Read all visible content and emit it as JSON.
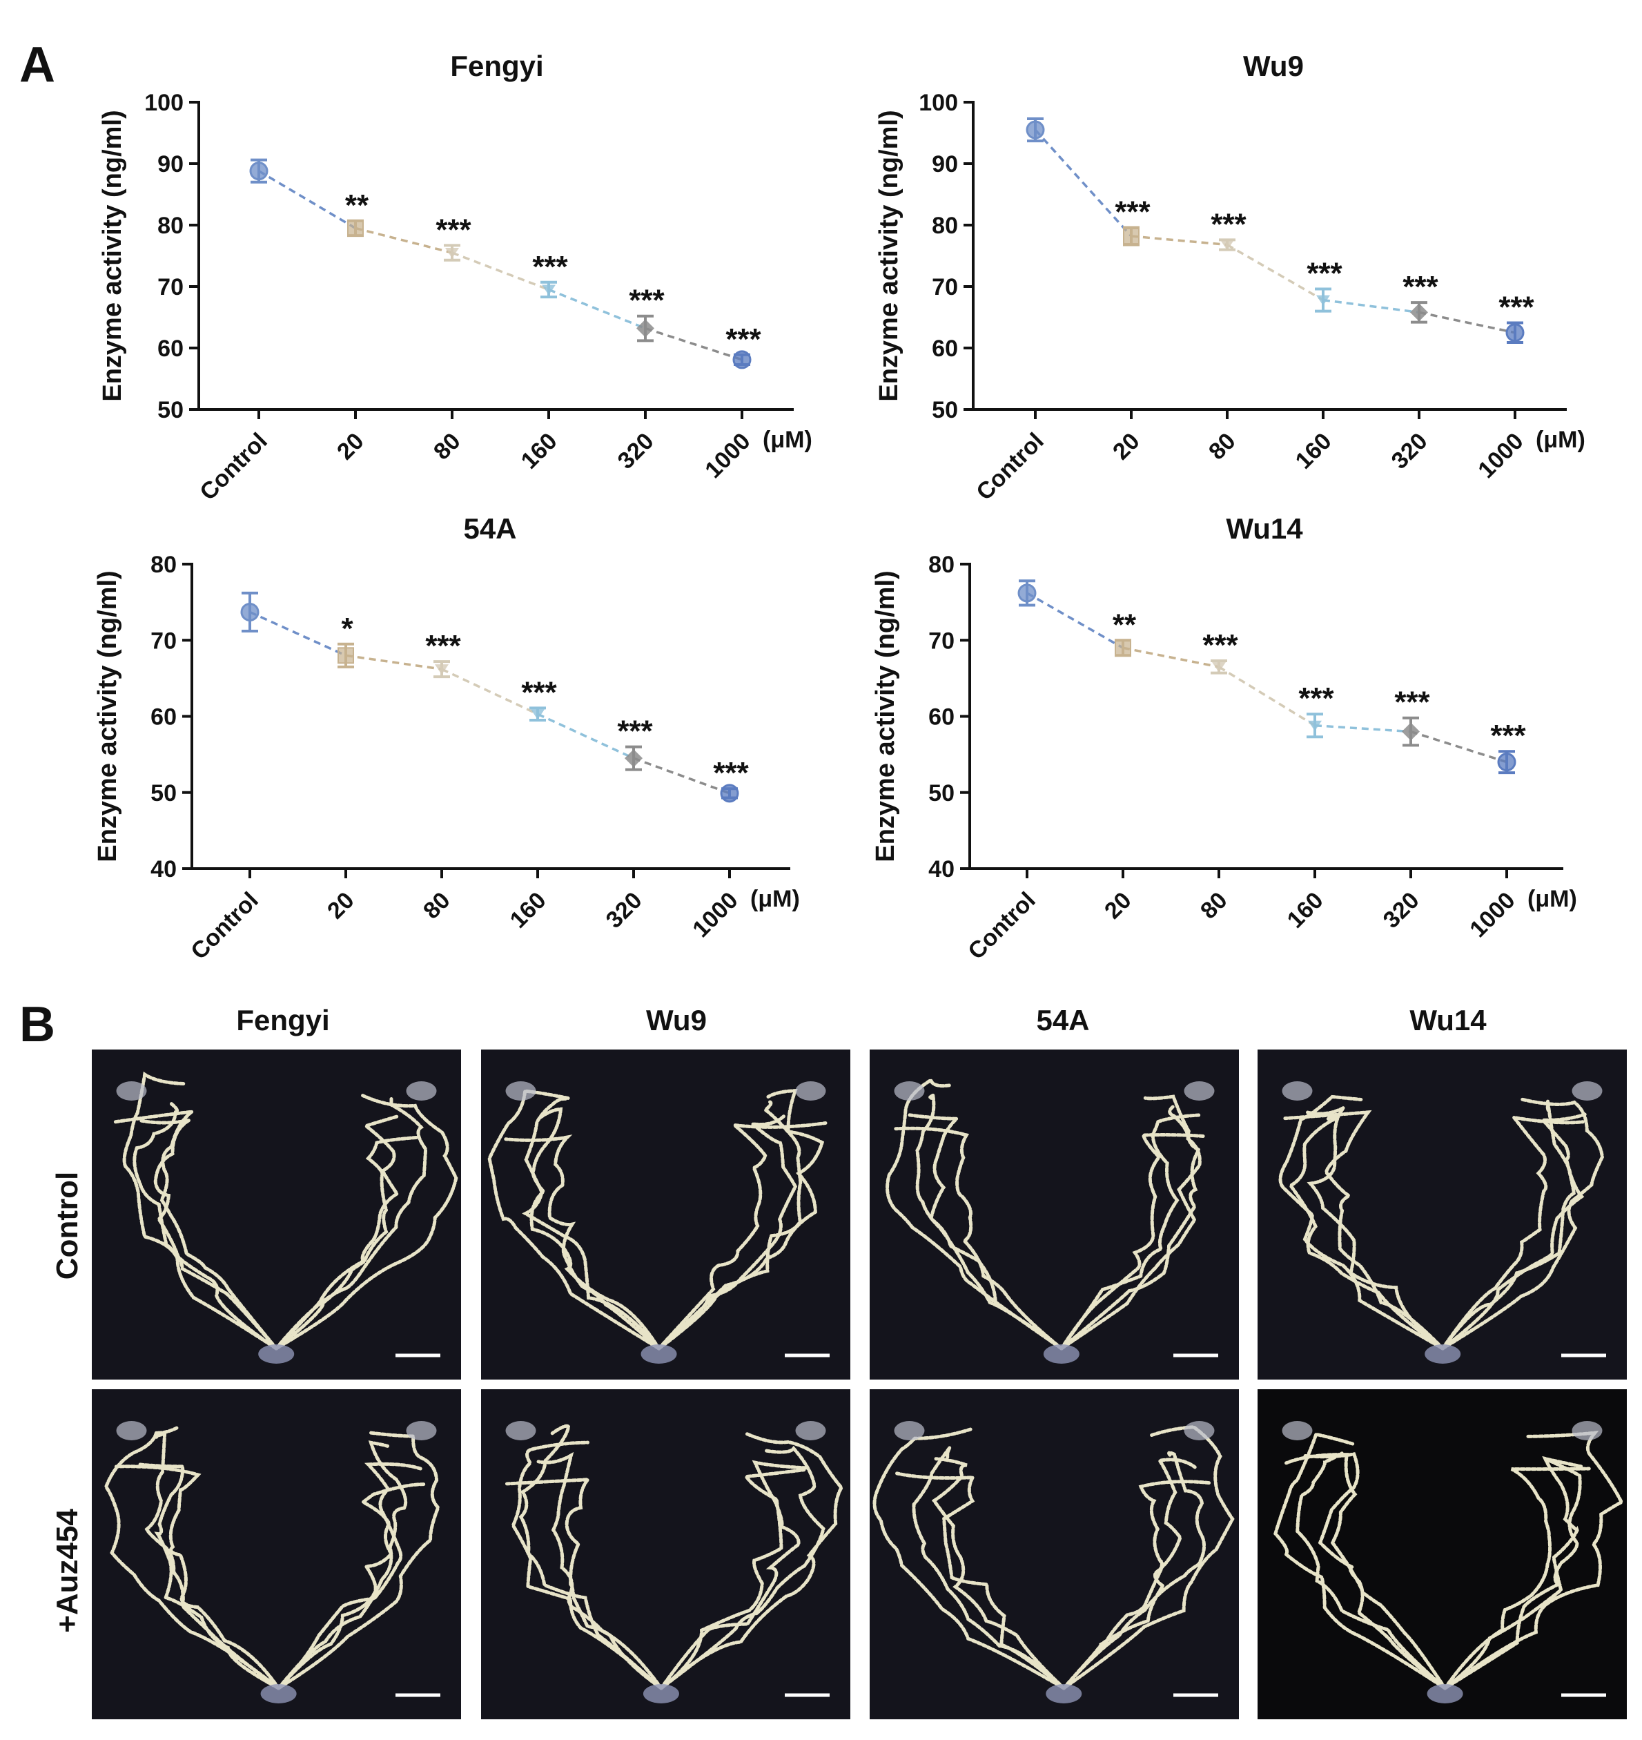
{
  "panel_a_label": "A",
  "panel_b_label": "B",
  "colors": {
    "blue": "#6f8fc8",
    "tan": "#c7b28f",
    "beige": "#d4cbb7",
    "lightblue": "#8fc1db",
    "grey": "#8c8c8c",
    "darkblue": "#5b7cc0"
  },
  "chart_data": [
    {
      "type": "line",
      "title": "Fengyi",
      "ylabel": "Enzyme activity (ng/ml)",
      "xlabel": "(μM)",
      "categories": [
        "Control",
        "20",
        "80",
        "160",
        "320",
        "1000"
      ],
      "values": [
        88.8,
        79.5,
        75.5,
        69.5,
        63.2,
        58.1
      ],
      "errors": [
        1.8,
        1.2,
        1.2,
        1.2,
        2.0,
        0.8
      ],
      "significance": [
        "",
        "**",
        "***",
        "***",
        "***",
        "***"
      ],
      "ylim": [
        50,
        100
      ],
      "yticks": [
        50,
        60,
        70,
        80,
        90,
        100
      ]
    },
    {
      "type": "line",
      "title": "Wu9",
      "ylabel": "Enzyme activity (ng/ml)",
      "xlabel": "(μM)",
      "categories": [
        "Control",
        "20",
        "80",
        "160",
        "320",
        "1000"
      ],
      "values": [
        95.5,
        78.2,
        76.8,
        67.8,
        65.8,
        62.5
      ],
      "errors": [
        1.8,
        1.4,
        0.8,
        1.8,
        1.6,
        1.6
      ],
      "significance": [
        "",
        "***",
        "***",
        "***",
        "***",
        "***"
      ],
      "ylim": [
        50,
        100
      ],
      "yticks": [
        50,
        60,
        70,
        80,
        90,
        100
      ]
    },
    {
      "type": "line",
      "title": "54A",
      "ylabel": "Enzyme activity (ng/ml)",
      "xlabel": "(μM)",
      "categories": [
        "Control",
        "20",
        "80",
        "160",
        "320",
        "1000"
      ],
      "values": [
        73.7,
        68.0,
        66.2,
        60.3,
        54.5,
        49.9
      ],
      "errors": [
        2.5,
        1.5,
        1.0,
        0.8,
        1.5,
        0.6
      ],
      "significance": [
        "",
        "*",
        "***",
        "***",
        "***",
        "***"
      ],
      "ylim": [
        40,
        80
      ],
      "yticks": [
        40,
        50,
        60,
        70,
        80
      ]
    },
    {
      "type": "line",
      "title": "Wu14",
      "ylabel": "Enzyme activity (ng/ml)",
      "xlabel": "(μM)",
      "categories": [
        "Control",
        "20",
        "80",
        "160",
        "320",
        "1000"
      ],
      "values": [
        76.2,
        69.0,
        66.5,
        58.8,
        58.0,
        54.0
      ],
      "errors": [
        1.6,
        1.0,
        0.8,
        1.5,
        1.8,
        1.4
      ],
      "significance": [
        "",
        "**",
        "***",
        "***",
        "***",
        "***"
      ],
      "ylim": [
        40,
        80
      ],
      "yticks": [
        40,
        50,
        60,
        70,
        80
      ]
    }
  ],
  "panel_b": {
    "columns": [
      "Fengyi",
      "Wu9",
      "54A",
      "Wu14"
    ],
    "rows": [
      "Control",
      "+Auz454"
    ]
  }
}
